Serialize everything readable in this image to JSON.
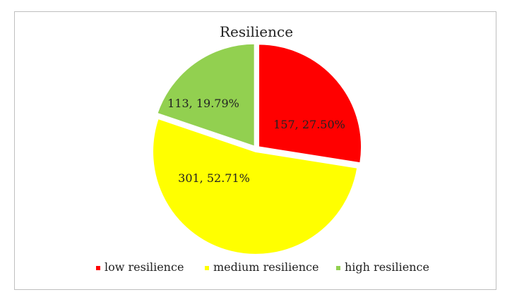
{
  "chart_data": {
    "type": "pie",
    "title": "Resilience",
    "slices": [
      {
        "name": "low resilience",
        "count": 157,
        "percent": 27.5,
        "label": "157, 27.50%",
        "color": "#ff0000"
      },
      {
        "name": "medium resilience",
        "count": 301,
        "percent": 52.71,
        "label": "301, 52.71%",
        "color": "#ffff00"
      },
      {
        "name": "high resilience",
        "count": 113,
        "percent": 19.79,
        "label": "113, 19.79%",
        "color": "#92d050"
      }
    ],
    "legend_position": "bottom",
    "start_angle": "top, clockwise"
  }
}
